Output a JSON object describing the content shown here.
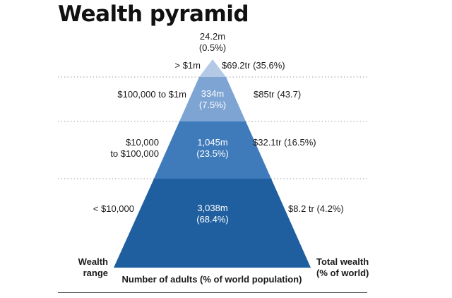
{
  "chart_data": {
    "type": "pyramid",
    "title": "Wealth pyramid",
    "tiers": [
      {
        "range": "< $10,000",
        "adults": "3,038m",
        "adults_pct": "(68.4%)",
        "wealth": "$8.2 tr (4.2%)"
      },
      {
        "range_line1": "$10,000",
        "range_line2": "to $100,000",
        "adults": "1,045m",
        "adults_pct": "(23.5%)",
        "wealth": "$32.1tr (16.5%)"
      },
      {
        "range": "$100,000 to $1m",
        "adults": "334m",
        "adults_pct": "(7.5%)",
        "wealth": "$85tr (43.7)"
      },
      {
        "range": "> $1m",
        "adults": "24.2m",
        "adults_pct": "(0.5%)",
        "wealth": "$69.2tr (35.6%)"
      }
    ],
    "left_axis_line1": "Wealth",
    "left_axis_line2": "range",
    "right_axis_line1": "Total wealth",
    "right_axis_line2": "(% of world)",
    "bottom_label": "Number of adults (% of world population)",
    "colors": [
      "#1f5f9f",
      "#3f7bbb",
      "#7ea4d3",
      "#b3c9e6"
    ]
  }
}
